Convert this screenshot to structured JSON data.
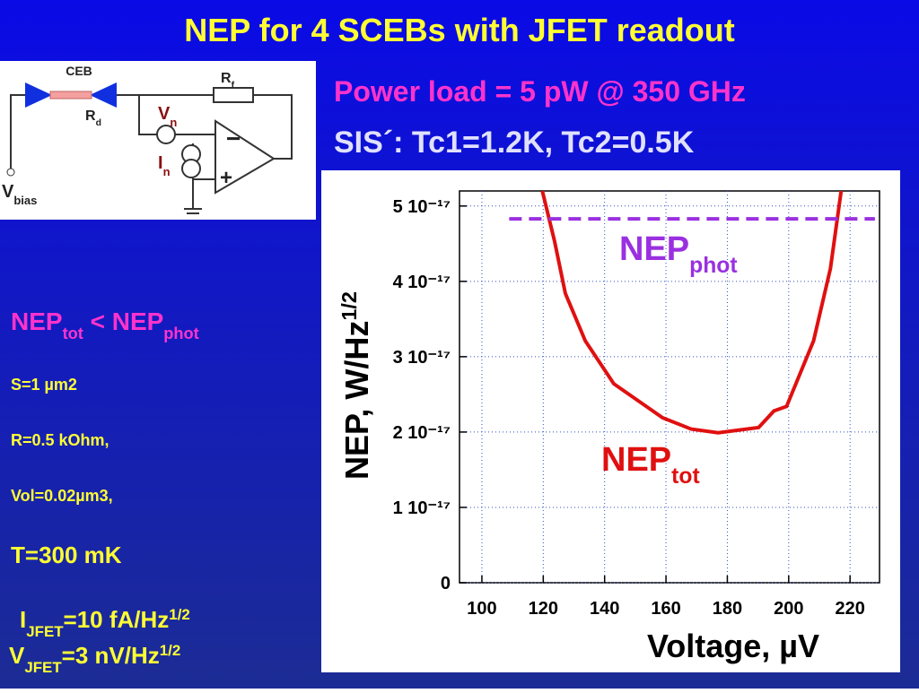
{
  "slide": {
    "title": "NEP for 4 SCEBs with JFET readout",
    "power_load": "Power load = 5 pW @ 350 GHz",
    "sis": "SIS´: Tc1=1.2K, Tc2=0.5K",
    "comparison": [
      {
        "text": "NEP"
      },
      {
        "sub": "tot"
      },
      {
        "text": " < NEP"
      },
      {
        "sub": "phot"
      }
    ],
    "params": [
      "S=1 µm2",
      "R=0.5 kOhm,",
      "Vol=0.02µm3,"
    ],
    "temperature": "T=300 mK",
    "i_jfet": [
      {
        "text": "I"
      },
      {
        "sub": "JFET"
      },
      {
        "text": "=10 fA/Hz"
      },
      {
        "sup": "1/2"
      }
    ],
    "v_jfet": [
      {
        "text": "V"
      },
      {
        "sub": "JFET"
      },
      {
        "text": "=3 nV/Hz"
      },
      {
        "sup": "1/2"
      }
    ],
    "circuit": {
      "ceb": "CEB",
      "rf": [
        {
          "text": "R"
        },
        {
          "sub": "f"
        }
      ],
      "rd": [
        {
          "text": "R"
        },
        {
          "sub": "d"
        }
      ],
      "vn": [
        {
          "text": "V"
        },
        {
          "sub": "n"
        }
      ],
      "in": [
        {
          "text": "I"
        },
        {
          "sub": "n"
        }
      ],
      "vbias": [
        {
          "text": "V"
        },
        {
          "sub": "bias"
        }
      ],
      "minus": "−",
      "plus": "+"
    }
  },
  "chart_data": {
    "type": "line",
    "y_label": [
      {
        "text": "NEP, W/Hz"
      },
      {
        "sup": "1/2"
      }
    ],
    "x_label": "Voltage, µV",
    "xlim": [
      92.7,
      229.6
    ],
    "xticks": [
      100,
      120,
      140,
      160,
      180,
      200,
      220
    ],
    "ylim": [
      0,
      5.2e-17
    ],
    "yticks": [
      0,
      {
        "value": 1e-17,
        "label": "1 10⁻¹⁷"
      },
      {
        "value": 2e-17,
        "label": "2 10⁻¹⁷"
      },
      {
        "value": 3e-17,
        "label": "3 10⁻¹⁷"
      },
      {
        "value": 4e-17,
        "label": "4 10⁻¹⁷"
      },
      {
        "value": 5e-17,
        "label": "5 10⁻¹⁷"
      }
    ],
    "grid": true,
    "series": [
      {
        "color": "#e01010",
        "x": [
          119.7,
          123.7,
          127.2,
          133.7,
          143.0,
          158.9,
          168.2,
          177.0,
          190.2,
          195.2,
          199.3,
          208.1,
          213.6,
          217.1
        ],
        "values": [
          5.2e-17,
          4.53e-17,
          3.84e-17,
          3.21e-17,
          2.64e-17,
          2.19e-17,
          2.04e-17,
          1.99e-17,
          2.06e-17,
          2.28e-17,
          2.34e-17,
          3.21e-17,
          4.17e-17,
          5.2e-17
        ]
      },
      {
        "color": "#9a30e0",
        "dashed": true,
        "x": [
          108.9,
          228.1
        ],
        "values": [
          4.83e-17,
          4.83e-17
        ]
      }
    ],
    "annotations": [
      {
        "parts": [
          {
            "text": "NEP"
          },
          {
            "sub": "phot"
          }
        ],
        "color": "#9a30e0"
      },
      {
        "parts": [
          {
            "text": "NEP"
          },
          {
            "sub": "tot"
          }
        ],
        "color": "#e01010"
      }
    ]
  }
}
